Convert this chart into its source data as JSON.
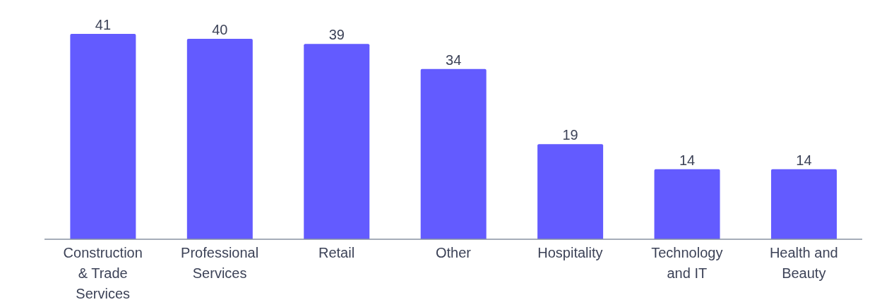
{
  "chart_data": {
    "type": "bar",
    "categories": [
      "Construction & Trade Services",
      "Professional Services",
      "Retail",
      "Other",
      "Hospitality",
      "Technology and IT",
      "Health and Beauty"
    ],
    "values": [
      41,
      40,
      39,
      34,
      19,
      14,
      14
    ],
    "color": "#635bff",
    "data_labels": true
  }
}
